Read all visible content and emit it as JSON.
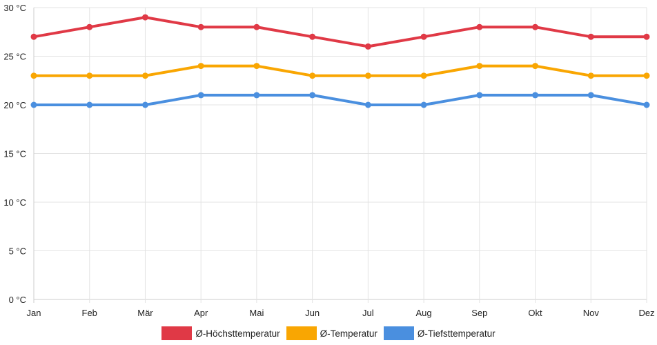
{
  "chart_data": {
    "type": "line",
    "categories": [
      "Jan",
      "Feb",
      "Mär",
      "Apr",
      "Mai",
      "Jun",
      "Jul",
      "Aug",
      "Sep",
      "Okt",
      "Nov",
      "Dez"
    ],
    "series": [
      {
        "name": "Ø-Höchsttemperatur",
        "color": "#e03946",
        "values": [
          27,
          28,
          29,
          28,
          28,
          27,
          26,
          27,
          28,
          28,
          27,
          27
        ]
      },
      {
        "name": "Ø-Temperatur",
        "color": "#f9a602",
        "values": [
          23,
          23,
          23,
          24,
          24,
          23,
          23,
          23,
          24,
          24,
          23,
          23
        ]
      },
      {
        "name": "Ø-Tiefsttemperatur",
        "color": "#4a8fdf",
        "values": [
          20,
          20,
          20,
          21,
          21,
          21,
          20,
          20,
          21,
          21,
          21,
          20
        ]
      }
    ],
    "ylim": [
      0,
      30
    ],
    "yticks": [
      0,
      5,
      10,
      15,
      20,
      25,
      30
    ],
    "ytick_labels": [
      "0 °C",
      "5 °C",
      "10 °C",
      "15 °C",
      "20 °C",
      "25 °C",
      "30 °C"
    ],
    "grid": true,
    "legend_position": "bottom-center",
    "title": "",
    "xlabel": "",
    "ylabel": ""
  }
}
